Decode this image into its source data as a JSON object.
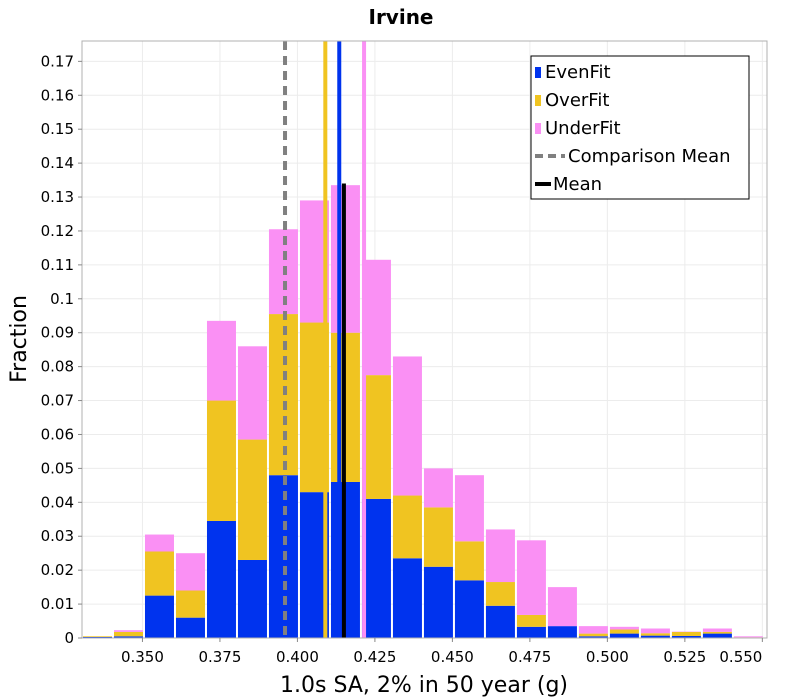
{
  "chart_data": {
    "type": "bar",
    "stacked": true,
    "title": "Irvine",
    "xlabel": "1.0s SA, 2% in 50 year (g)",
    "ylabel": "Fraction",
    "xlim": [
      0.3305,
      0.5515
    ],
    "ylim": [
      0,
      0.176
    ],
    "grid": true,
    "legend_position": "top-right",
    "x_ticks": [
      "0.350",
      "0.375",
      "0.400",
      "0.425",
      "0.450",
      "0.475",
      "0.500",
      "0.525",
      "0.550"
    ],
    "x_tick_values": [
      0.35,
      0.375,
      0.4,
      0.425,
      0.45,
      0.475,
      0.5,
      0.525,
      0.55
    ],
    "y_ticks": [
      "0",
      "0.01",
      "0.02",
      "0.03",
      "0.04",
      "0.05",
      "0.06",
      "0.07",
      "0.08",
      "0.09",
      "0.1",
      "0.11",
      "0.12",
      "0.13",
      "0.14",
      "0.15",
      "0.16",
      "0.17"
    ],
    "y_tick_values": [
      0,
      0.01,
      0.02,
      0.03,
      0.04,
      0.05,
      0.06,
      0.07,
      0.08,
      0.09,
      0.1,
      0.11,
      0.12,
      0.13,
      0.14,
      0.15,
      0.16,
      0.17
    ],
    "bin_width": 0.01,
    "bin_starts": [
      0.3305,
      0.3405,
      0.3505,
      0.3605,
      0.3705,
      0.3805,
      0.3905,
      0.4005,
      0.4105,
      0.4205,
      0.4305,
      0.4405,
      0.4505,
      0.4605,
      0.4705,
      0.4805,
      0.4905,
      0.5005,
      0.5105,
      0.5205,
      0.5305,
      0.5405
    ],
    "series": [
      {
        "name": "EvenFit",
        "color": "#0033ee",
        "values": [
          0.0003,
          0.0005,
          0.0125,
          0.006,
          0.0345,
          0.023,
          0.048,
          0.043,
          0.046,
          0.041,
          0.0235,
          0.021,
          0.017,
          0.0095,
          0.0033,
          0.0035,
          0.0005,
          0.0013,
          0.0007,
          0.0006,
          0.0013,
          0.0001
        ]
      },
      {
        "name": "OverFit",
        "color": "#f0c421",
        "values": [
          0.0002,
          0.0013,
          0.013,
          0.008,
          0.0355,
          0.0355,
          0.0475,
          0.05,
          0.044,
          0.0365,
          0.0185,
          0.0175,
          0.0115,
          0.007,
          0.0035,
          0.0,
          0.0008,
          0.0012,
          0.0007,
          0.0012,
          0.0005,
          0.0001
        ]
      },
      {
        "name": "UnderFit",
        "color": "#fa90f4",
        "values": [
          0.0,
          0.0005,
          0.005,
          0.011,
          0.0235,
          0.0275,
          0.025,
          0.036,
          0.0435,
          0.034,
          0.041,
          0.0115,
          0.0195,
          0.0155,
          0.022,
          0.0115,
          0.0022,
          0.0008,
          0.0014,
          0.0001,
          0.001,
          0.0003
        ]
      }
    ],
    "vertical_lines": [
      {
        "name": "Comparison Mean",
        "x": 0.396,
        "color": "#808080",
        "style": "dashed",
        "y_top": "full"
      },
      {
        "name": "Mean",
        "x": 0.415,
        "color": "#000000",
        "style": "solid",
        "y_top": 0.134
      },
      {
        "name": "OverFit",
        "x": 0.409,
        "color": "#f0c421",
        "style": "solid",
        "y_top": "full"
      },
      {
        "name": "EvenFit",
        "x": 0.4135,
        "color": "#0033ee",
        "style": "solid",
        "y_top": "full"
      },
      {
        "name": "UnderFit",
        "x": 0.4215,
        "color": "#fa90f4",
        "style": "solid",
        "y_top": "full"
      }
    ],
    "legend": [
      {
        "label": "EvenFit",
        "color": "#0033ee",
        "marker": "square"
      },
      {
        "label": "OverFit",
        "color": "#f0c421",
        "marker": "square"
      },
      {
        "label": "UnderFit",
        "color": "#fa90f4",
        "marker": "square"
      },
      {
        "label": "Comparison Mean",
        "color": "#808080",
        "marker": "dashed-line"
      },
      {
        "label": "Mean",
        "color": "#000000",
        "marker": "line"
      }
    ]
  }
}
